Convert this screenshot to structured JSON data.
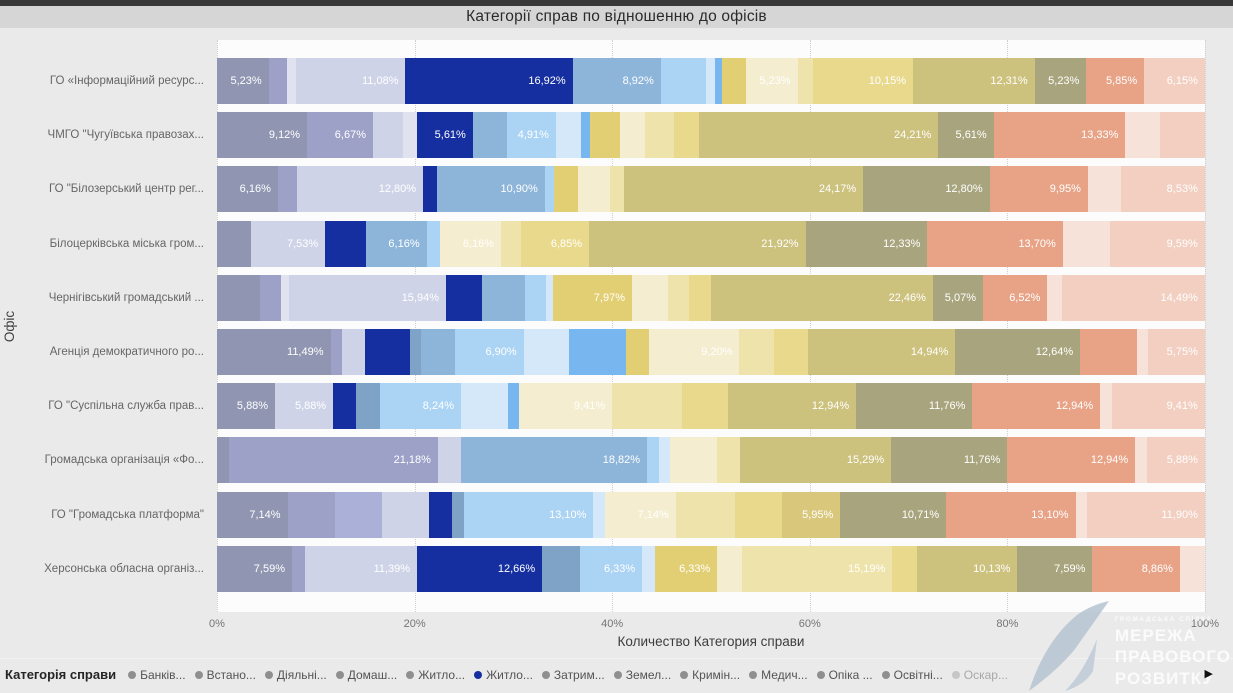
{
  "header": {
    "title": "Категорії справ по відношенню до офісів"
  },
  "chart_data": {
    "type": "bar",
    "subtype": "100-percent-stacked-horizontal",
    "title": "Категорії справ по відношенню до офісів",
    "xlabel": "Количество Категория справи",
    "ylabel": "Офіс",
    "x_axis": {
      "range": [
        0,
        100
      ],
      "ticks": [
        "0%",
        "20%",
        "40%",
        "60%",
        "80%",
        "100%"
      ],
      "grid": "dotted"
    },
    "rows": [
      {
        "office": "ГО «Інформаційний ресурс...",
        "segments": [
          {
            "value": 5.23,
            "label": "5,23%",
            "color": "#9095b1"
          },
          {
            "value": 1.85,
            "color": "#9da1c7"
          },
          {
            "value": 0.92,
            "color": "#e0e2f0"
          },
          {
            "value": 11.08,
            "label": "11,08%",
            "color": "#cfd3e8"
          },
          {
            "value": 16.92,
            "label": "16,92%",
            "color": "#152fa0"
          },
          {
            "value": 8.92,
            "label": "8,92%",
            "color": "#8db5da"
          },
          {
            "value": 4.62,
            "color": "#abd3f3"
          },
          {
            "value": 0.92,
            "color": "#d5e8fa"
          },
          {
            "value": 0.62,
            "color": "#77b6ef"
          },
          {
            "value": 2.46,
            "color": "#e3cf73"
          },
          {
            "value": 5.23,
            "label": "5,23%",
            "color": "#f4edd0"
          },
          {
            "value": 1.54,
            "color": "#eee4ab"
          },
          {
            "value": 10.15,
            "label": "10,15%",
            "color": "#e9d98c"
          },
          {
            "value": 12.31,
            "label": "12,31%",
            "color": "#ccc17d"
          },
          {
            "value": 5.23,
            "label": "5,23%",
            "color": "#a8a57e"
          },
          {
            "value": 5.85,
            "label": "5,85%",
            "color": "#e8a387"
          },
          {
            "value": 6.15,
            "label": "6,15%",
            "color": "#f2cfc1"
          }
        ]
      },
      {
        "office": "ЧМГО \"Чугуївська правозах...",
        "segments": [
          {
            "value": 9.12,
            "label": "9,12%",
            "color": "#9095b1"
          },
          {
            "value": 6.67,
            "label": "6,67%",
            "color": "#9da1c7"
          },
          {
            "value": 3.0,
            "color": "#cfd3e8"
          },
          {
            "value": 1.5,
            "color": "#e0e2f0"
          },
          {
            "value": 5.61,
            "label": "5,61%",
            "color": "#152fa0"
          },
          {
            "value": 3.5,
            "color": "#8db5da"
          },
          {
            "value": 4.91,
            "label": "4,91%",
            "color": "#abd3f3"
          },
          {
            "value": 2.5,
            "color": "#d5e8fa"
          },
          {
            "value": 1.0,
            "color": "#77b6ef"
          },
          {
            "value": 3.0,
            "color": "#e3cf73"
          },
          {
            "value": 2.5,
            "color": "#f4edd0"
          },
          {
            "value": 3.0,
            "color": "#eee4ab"
          },
          {
            "value": 2.5,
            "color": "#e9d98c"
          },
          {
            "value": 24.21,
            "label": "24,21%",
            "color": "#ccc17d"
          },
          {
            "value": 5.61,
            "label": "5,61%",
            "color": "#a8a57e"
          },
          {
            "value": 13.33,
            "label": "13,33%",
            "color": "#e8a387"
          },
          {
            "value": 3.5,
            "color": "#f7e2d9"
          },
          {
            "value": 4.54,
            "color": "#f2cfc1"
          }
        ]
      },
      {
        "office": "ГО \"Білозерський центр рег...",
        "segments": [
          {
            "value": 6.16,
            "label": "6,16%",
            "color": "#9095b1"
          },
          {
            "value": 1.9,
            "color": "#9da1c7"
          },
          {
            "value": 12.8,
            "label": "12,80%",
            "color": "#cfd3e8"
          },
          {
            "value": 1.42,
            "color": "#152fa0"
          },
          {
            "value": 10.9,
            "label": "10,90%",
            "color": "#8db5da"
          },
          {
            "value": 0.95,
            "color": "#abd3f3"
          },
          {
            "value": 2.37,
            "color": "#e3cf73"
          },
          {
            "value": 3.32,
            "color": "#f4edd0"
          },
          {
            "value": 1.42,
            "color": "#eee4ab"
          },
          {
            "value": 24.17,
            "label": "24,17%",
            "color": "#ccc17d"
          },
          {
            "value": 12.8,
            "label": "12,80%",
            "color": "#a8a57e"
          },
          {
            "value": 9.95,
            "label": "9,95%",
            "color": "#e8a387"
          },
          {
            "value": 3.31,
            "color": "#f7e2d9"
          },
          {
            "value": 8.53,
            "label": "8,53%",
            "color": "#f2cfc1"
          }
        ]
      },
      {
        "office": "Білоцерківська міська гром...",
        "segments": [
          {
            "value": 3.42,
            "color": "#9095b1"
          },
          {
            "value": 7.53,
            "label": "7,53%",
            "color": "#cfd3e8"
          },
          {
            "value": 4.11,
            "color": "#152fa0"
          },
          {
            "value": 6.16,
            "label": "6,16%",
            "color": "#8db5da"
          },
          {
            "value": 1.37,
            "color": "#abd3f3"
          },
          {
            "value": 6.16,
            "label": "6,16%",
            "color": "#f4edd0"
          },
          {
            "value": 2.06,
            "color": "#eee4ab"
          },
          {
            "value": 6.85,
            "label": "6,85%",
            "color": "#e9d98c"
          },
          {
            "value": 21.92,
            "label": "21,92%",
            "color": "#ccc17d"
          },
          {
            "value": 12.33,
            "label": "12,33%",
            "color": "#a8a57e"
          },
          {
            "value": 13.7,
            "label": "13,70%",
            "color": "#e8a387"
          },
          {
            "value": 4.79,
            "color": "#f7e2d9"
          },
          {
            "value": 9.59,
            "label": "9,59%",
            "color": "#f2cfc1"
          }
        ]
      },
      {
        "office": "Чернігівський громадський ...",
        "segments": [
          {
            "value": 4.35,
            "color": "#9095b1"
          },
          {
            "value": 2.17,
            "color": "#9da1c7"
          },
          {
            "value": 0.72,
            "color": "#e0e2f0"
          },
          {
            "value": 15.94,
            "label": "15,94%",
            "color": "#cfd3e8"
          },
          {
            "value": 3.62,
            "color": "#152fa0"
          },
          {
            "value": 4.35,
            "color": "#8db5da"
          },
          {
            "value": 2.17,
            "color": "#abd3f3"
          },
          {
            "value": 0.72,
            "color": "#d5e8fa"
          },
          {
            "value": 7.97,
            "label": "7,97%",
            "color": "#e3cf73"
          },
          {
            "value": 3.62,
            "color": "#f4edd0"
          },
          {
            "value": 2.17,
            "color": "#eee4ab"
          },
          {
            "value": 2.21,
            "color": "#e9d98c"
          },
          {
            "value": 22.46,
            "label": "22,46%",
            "color": "#ccc17d"
          },
          {
            "value": 5.07,
            "label": "5,07%",
            "color": "#a8a57e"
          },
          {
            "value": 6.52,
            "label": "6,52%",
            "color": "#e8a387"
          },
          {
            "value": 1.45,
            "color": "#f7e2d9"
          },
          {
            "value": 14.49,
            "label": "14,49%",
            "color": "#f2cfc1"
          }
        ]
      },
      {
        "office": "Агенція демократичного ро...",
        "segments": [
          {
            "value": 11.49,
            "label": "11,49%",
            "color": "#9095b1"
          },
          {
            "value": 1.15,
            "color": "#9da1c7"
          },
          {
            "value": 2.3,
            "color": "#cfd3e8"
          },
          {
            "value": 4.6,
            "color": "#152fa0"
          },
          {
            "value": 1.15,
            "color": "#7fa3c6"
          },
          {
            "value": 3.45,
            "color": "#8db5da"
          },
          {
            "value": 6.9,
            "label": "6,90%",
            "color": "#abd3f3"
          },
          {
            "value": 4.6,
            "color": "#d5e8fa"
          },
          {
            "value": 5.75,
            "color": "#77b6ef"
          },
          {
            "value": 2.3,
            "color": "#e3cf73"
          },
          {
            "value": 9.2,
            "label": "9,20%",
            "color": "#f4edd0"
          },
          {
            "value": 3.45,
            "color": "#eee4ab"
          },
          {
            "value": 3.45,
            "color": "#e9d98c"
          },
          {
            "value": 14.94,
            "label": "14,94%",
            "color": "#ccc17d"
          },
          {
            "value": 12.64,
            "label": "12,64%",
            "color": "#a8a57e"
          },
          {
            "value": 5.73,
            "color": "#e8a387"
          },
          {
            "value": 1.15,
            "color": "#f7e2d9"
          },
          {
            "value": 5.75,
            "label": "5,75%",
            "color": "#f2cfc1"
          }
        ]
      },
      {
        "office": "ГО \"Суспільна служба прав...",
        "segments": [
          {
            "value": 5.88,
            "label": "5,88%",
            "color": "#9095b1"
          },
          {
            "value": 5.88,
            "label": "5,88%",
            "color": "#cfd3e8"
          },
          {
            "value": 2.35,
            "color": "#152fa0"
          },
          {
            "value": 2.35,
            "color": "#7fa3c6"
          },
          {
            "value": 8.24,
            "label": "8,24%",
            "color": "#abd3f3"
          },
          {
            "value": 4.71,
            "color": "#d5e8fa"
          },
          {
            "value": 1.18,
            "color": "#77b6ef"
          },
          {
            "value": 9.41,
            "label": "9,41%",
            "color": "#f4edd0"
          },
          {
            "value": 7.06,
            "color": "#eee4ab"
          },
          {
            "value": 4.7,
            "color": "#e9d98c"
          },
          {
            "value": 12.94,
            "label": "12,94%",
            "color": "#ccc17d"
          },
          {
            "value": 11.76,
            "label": "11,76%",
            "color": "#a8a57e"
          },
          {
            "value": 12.94,
            "label": "12,94%",
            "color": "#e8a387"
          },
          {
            "value": 1.18,
            "color": "#f7e2d9"
          },
          {
            "value": 9.41,
            "label": "9,41%",
            "color": "#f2cfc1"
          }
        ]
      },
      {
        "office": "Громадська організація «Фо...",
        "segments": [
          {
            "value": 1.18,
            "color": "#9095b1"
          },
          {
            "value": 21.18,
            "label": "21,18%",
            "color": "#9da1c7"
          },
          {
            "value": 2.35,
            "color": "#cfd3e8"
          },
          {
            "value": 18.82,
            "label": "18,82%",
            "color": "#8db5da"
          },
          {
            "value": 1.18,
            "color": "#abd3f3"
          },
          {
            "value": 1.18,
            "color": "#d5e8fa"
          },
          {
            "value": 4.71,
            "color": "#f4edd0"
          },
          {
            "value": 2.35,
            "color": "#eee4ab"
          },
          {
            "value": 15.29,
            "label": "15,29%",
            "color": "#ccc17d"
          },
          {
            "value": 11.76,
            "label": "11,76%",
            "color": "#a8a57e"
          },
          {
            "value": 12.94,
            "label": "12,94%",
            "color": "#e8a387"
          },
          {
            "value": 1.18,
            "color": "#f7e2d9"
          },
          {
            "value": 5.88,
            "label": "5,88%",
            "color": "#f2cfc1"
          }
        ]
      },
      {
        "office": "ГО \"Громадська платформа\"",
        "segments": [
          {
            "value": 7.14,
            "label": "7,14%",
            "color": "#9095b1"
          },
          {
            "value": 4.78,
            "color": "#9da1c7"
          },
          {
            "value": 4.76,
            "color": "#aab0d8"
          },
          {
            "value": 4.76,
            "color": "#cfd3e8"
          },
          {
            "value": 2.38,
            "color": "#152fa0"
          },
          {
            "value": 1.19,
            "color": "#7fa3c6"
          },
          {
            "value": 13.1,
            "label": "13,10%",
            "color": "#abd3f3"
          },
          {
            "value": 1.19,
            "color": "#d5e8fa"
          },
          {
            "value": 7.14,
            "label": "7,14%",
            "color": "#f4edd0"
          },
          {
            "value": 5.95,
            "color": "#eee4ab"
          },
          {
            "value": 4.76,
            "color": "#e9d98c"
          },
          {
            "value": 5.95,
            "label": "5,95%",
            "color": "#d9c87c"
          },
          {
            "value": 10.71,
            "label": "10,71%",
            "color": "#a8a57e"
          },
          {
            "value": 13.1,
            "label": "13,10%",
            "color": "#e8a387"
          },
          {
            "value": 1.19,
            "color": "#f7e2d9"
          },
          {
            "value": 11.9,
            "label": "11,90%",
            "color": "#f2cfc1"
          }
        ]
      },
      {
        "office": "Херсонська обласна організ...",
        "segments": [
          {
            "value": 7.59,
            "label": "7,59%",
            "color": "#9095b1"
          },
          {
            "value": 1.27,
            "color": "#9da1c7"
          },
          {
            "value": 11.39,
            "label": "11,39%",
            "color": "#cfd3e8"
          },
          {
            "value": 12.66,
            "label": "12,66%",
            "color": "#152fa0"
          },
          {
            "value": 3.8,
            "color": "#7fa3c6"
          },
          {
            "value": 6.33,
            "label": "6,33%",
            "color": "#abd3f3"
          },
          {
            "value": 1.27,
            "color": "#d5e8fa"
          },
          {
            "value": 6.33,
            "label": "6,33%",
            "color": "#e3cf73"
          },
          {
            "value": 2.53,
            "color": "#f4edd0"
          },
          {
            "value": 15.19,
            "label": "15,19%",
            "color": "#eee4ab"
          },
          {
            "value": 2.53,
            "color": "#e9d98c"
          },
          {
            "value": 10.13,
            "label": "10,13%",
            "color": "#ccc17d"
          },
          {
            "value": 7.59,
            "label": "7,59%",
            "color": "#a8a57e"
          },
          {
            "value": 8.86,
            "label": "8,86%",
            "color": "#e8a387"
          },
          {
            "value": 2.53,
            "color": "#f7e2d9"
          }
        ]
      }
    ]
  },
  "axes": {
    "y_title": "Офіс",
    "x_title": "Количество Категория справи"
  },
  "legend": {
    "title": "Категорія справи",
    "scroll_arrow": "▶",
    "items": [
      {
        "label": "Банків...",
        "color": "#8f8f8f"
      },
      {
        "label": "Встано...",
        "color": "#8f8f8f"
      },
      {
        "label": "Діяльні...",
        "color": "#8f8f8f"
      },
      {
        "label": "Домаш...",
        "color": "#8f8f8f"
      },
      {
        "label": "Житло...",
        "color": "#8f8f8f"
      },
      {
        "label": "Житло...",
        "color": "#152fa0"
      },
      {
        "label": "Затрим...",
        "color": "#8f8f8f"
      },
      {
        "label": "Земел...",
        "color": "#8f8f8f"
      },
      {
        "label": "Кримін...",
        "color": "#8f8f8f"
      },
      {
        "label": "Медич...",
        "color": "#8f8f8f"
      },
      {
        "label": "Опіка ...",
        "color": "#8f8f8f"
      },
      {
        "label": "Освітні...",
        "color": "#8f8f8f"
      },
      {
        "label": "Оскар...",
        "color": "#c6c6c6",
        "text_color": "#a8a8a8"
      }
    ]
  },
  "watermark": {
    "small_text": "ГРОМАДСЬКА СПІЛКА",
    "lines": [
      "МЕРЕЖА",
      "ПРАВОВОГО",
      "РОЗВИТКУ"
    ],
    "logo_color": "#b5c4d2"
  }
}
